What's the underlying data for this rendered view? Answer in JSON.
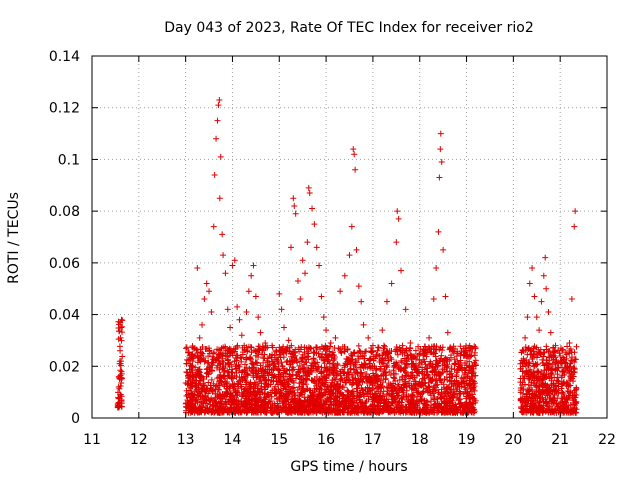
{
  "chart_data": {
    "type": "scatter",
    "title": "Day 043 of 2023, Rate Of TEC Index for receiver rio2",
    "xlabel": "GPS time / hours",
    "ylabel": "ROTI / TECUs",
    "xlim": [
      11,
      22
    ],
    "ylim": [
      0,
      0.14
    ],
    "xticks": [
      "11",
      "12",
      "13",
      "14",
      "15",
      "16",
      "17",
      "18",
      "19",
      "20",
      "21",
      "22"
    ],
    "yticks": [
      "0",
      "0.02",
      "0.04",
      "0.06",
      "0.08",
      "0.1",
      "0.12",
      "0.14"
    ],
    "grid": true,
    "marker": "+",
    "color": "#e00000",
    "points": [
      [
        11.55,
        0.005
      ],
      [
        11.56,
        0.008
      ],
      [
        11.57,
        0.012
      ],
      [
        11.58,
        0.016
      ],
      [
        11.59,
        0.021
      ],
      [
        11.6,
        0.026
      ],
      [
        11.61,
        0.031
      ],
      [
        11.62,
        0.035
      ],
      [
        11.63,
        0.038
      ],
      [
        11.57,
        0.006
      ],
      [
        11.6,
        0.009
      ],
      [
        13.05,
        0.013
      ],
      [
        13.1,
        0.017
      ],
      [
        13.15,
        0.022
      ],
      [
        13.2,
        0.027
      ],
      [
        13.25,
        0.058
      ],
      [
        13.3,
        0.031
      ],
      [
        13.35,
        0.036
      ],
      [
        13.4,
        0.046
      ],
      [
        13.45,
        0.052
      ],
      [
        13.5,
        0.049
      ],
      [
        13.55,
        0.041
      ],
      [
        13.6,
        0.074
      ],
      [
        13.62,
        0.094
      ],
      [
        13.65,
        0.108
      ],
      [
        13.68,
        0.115
      ],
      [
        13.7,
        0.121
      ],
      [
        13.72,
        0.123
      ],
      [
        13.75,
        0.101
      ],
      [
        13.73,
        0.085
      ],
      [
        13.78,
        0.071
      ],
      [
        13.8,
        0.063
      ],
      [
        13.85,
        0.056
      ],
      [
        13.9,
        0.042
      ],
      [
        13.95,
        0.035
      ],
      [
        14.0,
        0.059
      ],
      [
        14.05,
        0.061
      ],
      [
        14.1,
        0.043
      ],
      [
        14.15,
        0.038
      ],
      [
        14.2,
        0.032
      ],
      [
        14.25,
        0.028
      ],
      [
        14.3,
        0.041
      ],
      [
        14.35,
        0.049
      ],
      [
        14.4,
        0.055
      ],
      [
        14.45,
        0.059
      ],
      [
        14.5,
        0.047
      ],
      [
        14.55,
        0.039
      ],
      [
        14.6,
        0.033
      ],
      [
        14.7,
        0.029
      ],
      [
        14.8,
        0.024
      ],
      [
        14.9,
        0.021
      ],
      [
        15.0,
        0.048
      ],
      [
        15.05,
        0.042
      ],
      [
        15.1,
        0.035
      ],
      [
        15.2,
        0.03
      ],
      [
        15.25,
        0.066
      ],
      [
        15.3,
        0.085
      ],
      [
        15.32,
        0.082
      ],
      [
        15.35,
        0.079
      ],
      [
        15.4,
        0.053
      ],
      [
        15.45,
        0.046
      ],
      [
        15.5,
        0.061
      ],
      [
        15.55,
        0.056
      ],
      [
        15.6,
        0.068
      ],
      [
        15.63,
        0.089
      ],
      [
        15.65,
        0.087
      ],
      [
        15.7,
        0.081
      ],
      [
        15.75,
        0.075
      ],
      [
        15.8,
        0.066
      ],
      [
        15.85,
        0.059
      ],
      [
        15.9,
        0.047
      ],
      [
        15.95,
        0.039
      ],
      [
        16.0,
        0.034
      ],
      [
        16.1,
        0.029
      ],
      [
        16.2,
        0.031
      ],
      [
        16.3,
        0.049
      ],
      [
        16.4,
        0.055
      ],
      [
        16.5,
        0.063
      ],
      [
        16.55,
        0.074
      ],
      [
        16.58,
        0.104
      ],
      [
        16.6,
        0.102
      ],
      [
        16.62,
        0.096
      ],
      [
        16.65,
        0.065
      ],
      [
        16.7,
        0.051
      ],
      [
        16.75,
        0.045
      ],
      [
        16.8,
        0.036
      ],
      [
        16.9,
        0.031
      ],
      [
        17.0,
        0.028
      ],
      [
        17.1,
        0.026
      ],
      [
        17.2,
        0.034
      ],
      [
        17.3,
        0.045
      ],
      [
        17.4,
        0.052
      ],
      [
        17.5,
        0.068
      ],
      [
        17.52,
        0.08
      ],
      [
        17.55,
        0.077
      ],
      [
        17.6,
        0.057
      ],
      [
        17.7,
        0.042
      ],
      [
        17.8,
        0.029
      ],
      [
        17.9,
        0.024
      ],
      [
        18.0,
        0.021
      ],
      [
        18.1,
        0.025
      ],
      [
        18.2,
        0.031
      ],
      [
        18.3,
        0.046
      ],
      [
        18.35,
        0.058
      ],
      [
        18.4,
        0.072
      ],
      [
        18.42,
        0.093
      ],
      [
        18.44,
        0.104
      ],
      [
        18.45,
        0.11
      ],
      [
        18.47,
        0.099
      ],
      [
        18.5,
        0.065
      ],
      [
        18.55,
        0.047
      ],
      [
        18.6,
        0.033
      ],
      [
        18.7,
        0.026
      ],
      [
        18.8,
        0.022
      ],
      [
        18.9,
        0.019
      ],
      [
        19.0,
        0.024
      ],
      [
        19.1,
        0.027
      ],
      [
        19.15,
        0.019
      ],
      [
        20.15,
        0.021
      ],
      [
        20.2,
        0.026
      ],
      [
        20.25,
        0.031
      ],
      [
        20.3,
        0.039
      ],
      [
        20.35,
        0.052
      ],
      [
        20.4,
        0.058
      ],
      [
        20.45,
        0.047
      ],
      [
        20.5,
        0.039
      ],
      [
        20.55,
        0.034
      ],
      [
        20.6,
        0.045
      ],
      [
        20.65,
        0.055
      ],
      [
        20.68,
        0.062
      ],
      [
        20.7,
        0.05
      ],
      [
        20.75,
        0.041
      ],
      [
        20.8,
        0.033
      ],
      [
        20.9,
        0.028
      ],
      [
        21.0,
        0.024
      ],
      [
        21.1,
        0.021
      ],
      [
        21.2,
        0.029
      ],
      [
        21.25,
        0.046
      ],
      [
        21.3,
        0.074
      ],
      [
        21.32,
        0.08
      ]
    ],
    "band_points_note_removed": true,
    "dense_band": [
      {
        "x_range": [
          11.55,
          11.65
        ],
        "y_range": [
          0.004,
          0.038
        ]
      },
      {
        "x_range": [
          13.0,
          19.2
        ],
        "y_range": [
          0.002,
          0.028
        ]
      },
      {
        "x_range": [
          20.15,
          21.35
        ],
        "y_range": [
          0.002,
          0.028
        ]
      }
    ]
  }
}
